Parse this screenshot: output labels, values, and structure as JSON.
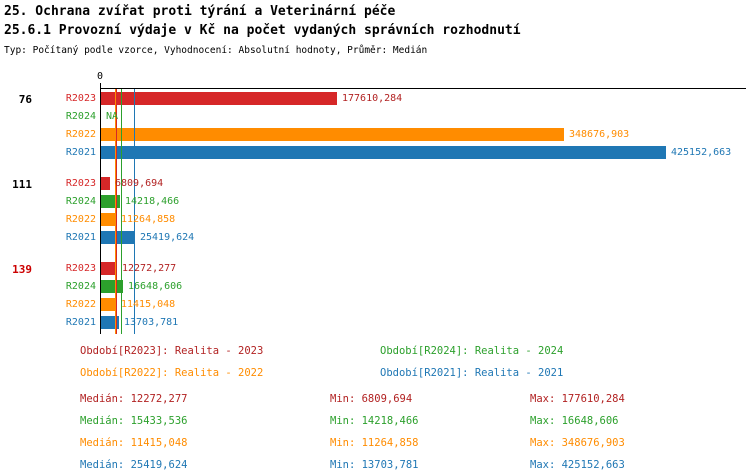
{
  "header": {
    "title1": "25. Ochrana zvířat proti týrání a Veterinární péče",
    "title2": "25.6.1 Provozní výdaje v Kč na počet vydaných správních rozhodnutí",
    "subtitle": "Typ: Počítaný podle vzorce, Vyhodnocení: Absolutní hodnoty, Průměr: Medián"
  },
  "chart_data": {
    "type": "bar",
    "orientation": "horizontal",
    "title": "25. Ochrana zvířat proti týrání a Veterinární péče",
    "subtitle": "25.6.1 Provozní výdaje v Kč na počet vydaných správních rozhodnutí",
    "meta": "Typ: Počítaný podle vzorce, Vyhodnocení: Absolutní hodnoty, Průměr: Medián",
    "x_axis": {
      "zero_label": "0",
      "xmax": 425152.663
    },
    "series_order": [
      "R2023",
      "R2024",
      "R2022",
      "R2021"
    ],
    "series_colors": {
      "R2023": "#d62728",
      "R2024": "#2ca02c",
      "R2022": "#ff8c00",
      "R2021": "#1f77b4"
    },
    "value_label_colors": {
      "R2023": "#b22222",
      "R2024": "#2ca02c",
      "R2022": "#ff8c00",
      "R2021": "#1f77b4"
    },
    "groups": [
      {
        "label": "76",
        "label_color": "#000000",
        "values": [
          {
            "series": "R2023",
            "value": 177610.284,
            "label": "177610,284"
          },
          {
            "series": "R2024",
            "value": null,
            "label": "NA"
          },
          {
            "series": "R2022",
            "value": 348676.903,
            "label": "348676,903"
          },
          {
            "series": "R2021",
            "value": 425152.663,
            "label": "425152,663"
          }
        ]
      },
      {
        "label": "111",
        "label_color": "#000000",
        "values": [
          {
            "series": "R2023",
            "value": 6809.694,
            "label": "6809,694"
          },
          {
            "series": "R2024",
            "value": 14218.466,
            "label": "14218,466"
          },
          {
            "series": "R2022",
            "value": 11264.858,
            "label": "11264,858"
          },
          {
            "series": "R2021",
            "value": 25419.624,
            "label": "25419,624"
          }
        ]
      },
      {
        "label": "139",
        "label_color": "#cc0000",
        "values": [
          {
            "series": "R2023",
            "value": 12272.277,
            "label": "12272,277"
          },
          {
            "series": "R2024",
            "value": 16648.606,
            "label": "16648,606"
          },
          {
            "series": "R2022",
            "value": 11415.048,
            "label": "11415,048"
          },
          {
            "series": "R2021",
            "value": 13703.781,
            "label": "13703,781"
          }
        ]
      }
    ],
    "median_lines": [
      {
        "series": "R2022",
        "value": 11415.048
      },
      {
        "series": "R2023",
        "value": 12272.277
      },
      {
        "series": "R2024",
        "value": 15433.536
      },
      {
        "series": "R2021",
        "value": 25419.624
      }
    ]
  },
  "legend": {
    "items": [
      {
        "label": "Období[R2023]: Realita - 2023",
        "color": "#b22222"
      },
      {
        "label": "Období[R2024]: Realita - 2024",
        "color": "#2ca02c"
      },
      {
        "label": "Období[R2022]: Realita - 2022",
        "color": "#ff8c00"
      },
      {
        "label": "Období[R2021]: Realita - 2021",
        "color": "#1f77b4"
      }
    ]
  },
  "stats": {
    "rows": [
      {
        "color": "#b22222",
        "median_label": "Medián: 12272,277",
        "min_label": "Min: 6809,694",
        "max_label": "Max: 177610,284"
      },
      {
        "color": "#2ca02c",
        "median_label": "Medián: 15433,536",
        "min_label": "Min: 14218,466",
        "max_label": "Max: 16648,606"
      },
      {
        "color": "#ff8c00",
        "median_label": "Medián: 11415,048",
        "min_label": "Min: 11264,858",
        "max_label": "Max: 348676,903"
      },
      {
        "color": "#1f77b4",
        "median_label": "Medián: 25419,624",
        "min_label": "Min: 13703,781",
        "max_label": "Max: 425152,663"
      }
    ]
  }
}
